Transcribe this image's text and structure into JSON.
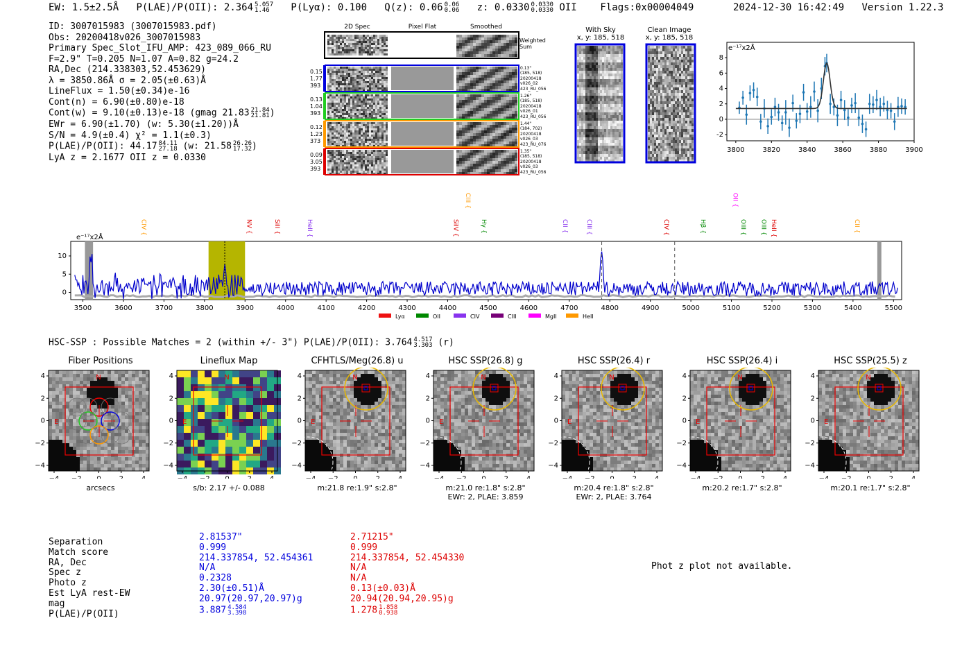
{
  "header": {
    "ew_label": "EW: 1.5±2.5Å",
    "plae_label": "P(LAE)/P(OII): 2.364",
    "plae_hi": "5.057",
    "plae_lo": "1.46",
    "plya": "P(Lyα): 0.100",
    "qz_label": "Q(z): 0.06",
    "qz_hi": "0.06",
    "qz_lo": "0.06",
    "z_label": "z: 0.0330",
    "z_hi": "0.0330",
    "z_lo": "0.0330",
    "z_line": "OII",
    "flags": "Flags:0x00004049",
    "timestamp": "2024-12-30 16:42:49",
    "version": "Version 1.22.3"
  },
  "info": {
    "id": "ID: 3007015983 (3007015983.pdf)",
    "obs": "Obs: 20200418v026_3007015983",
    "primary": "Primary Spec_Slot_IFU_AMP: 423_089_066_RU",
    "fiber": "F=2.9\"  T=0.205  N=1.07  A=0.82  g=24.2",
    "radec": "RA,Dec (214.338303,52.453629)",
    "lambda": "λ = 3850.86Å  σ = 2.05(±0.63)Å",
    "lineflux": "LineFlux = 1.50(±0.34)e-16",
    "contn": "Cont(n) = 6.90(±0.80)e-18",
    "contw": "Cont(w) = 9.10(±0.13)e-18 (gmag 21.83",
    "contw_hi": "21.84",
    "contw_lo": "21.81",
    "contw_end": ")",
    "ewr": "EWr = 6.90(±1.70) (w: 5.30(±1.20))Å",
    "sn": "S/N = 4.9(±0.4)  χ² = 1.1(±0.3)",
    "plae": "P(LAE)/P(OII): 44.17",
    "plae_hi": "84.11",
    "plae_lo": "27.18",
    "plae_w": "(w: 21.58",
    "plae_w_hi": "26.26",
    "plae_w_lo": "17.32",
    "plae_w_end": ")",
    "lyaz": "LyA z = 2.1677  OII z = 0.0330"
  },
  "cutouts": {
    "col_2d": "2D Spec",
    "col_flat": "Pixel Flat",
    "col_smooth": "Smoothed",
    "weighted_sum": "Weighted Sum",
    "rows": [
      {
        "w": "0.15",
        "a": "1.77",
        "n": "393",
        "info": [
          "0.13\"",
          "(185, 518)",
          "20200418",
          "v026_02",
          "423_RU_056"
        ],
        "color": "#0000dd"
      },
      {
        "w": "0.13",
        "a": "1.04",
        "n": "393",
        "info": [
          "1.26\"",
          "(185, 518)",
          "20200418",
          "v026_01",
          "423_RU_056"
        ],
        "color": "#22cc22"
      },
      {
        "w": "0.12",
        "a": "1.23",
        "n": "373",
        "info": [
          "1.44\"",
          "(184, 702)",
          "20200418",
          "v026_03",
          "423_RU_076"
        ],
        "color": "#ff9900"
      },
      {
        "w": "0.09",
        "a": "3.05",
        "n": "393",
        "info": [
          "1.35\"",
          "(185, 518)",
          "20200418",
          "v026_03",
          "423_RU_056"
        ],
        "color": "#dd0000"
      }
    ],
    "with_sky": "With Sky",
    "with_sky_xy": "x, y: 185, 518",
    "clean": "Clean Image",
    "clean_xy": "x, y: 185, 518"
  },
  "zoom_chart": {
    "unit": "e⁻¹⁷x2Å",
    "xlim": [
      3795,
      3900
    ],
    "ylim": [
      -2.8,
      10
    ],
    "xticks": [
      3800,
      3820,
      3840,
      3860,
      3880,
      3900
    ],
    "yticks": [
      -2,
      0,
      2,
      4,
      6,
      8
    ],
    "continuum": 1.4,
    "peak_center": 3851,
    "peak_amp": 5.9,
    "peak_sigma": 1.9,
    "points": [
      [
        3802,
        1.5,
        0.8
      ],
      [
        3804,
        2.8,
        0.9
      ],
      [
        3806,
        0.6,
        1.3
      ],
      [
        3808,
        3.4,
        1.0
      ],
      [
        3810,
        3.8,
        1.0
      ],
      [
        3812,
        2.9,
        1.2
      ],
      [
        3814,
        -0.3,
        1.0
      ],
      [
        3816,
        1.4,
        1.2
      ],
      [
        3818,
        -0.9,
        1.0
      ],
      [
        3820,
        0.3,
        1.0
      ],
      [
        3822,
        1.6,
        1.2
      ],
      [
        3824,
        0.9,
        1.1
      ],
      [
        3826,
        -0.5,
        1.0
      ],
      [
        3828,
        0.9,
        1.6
      ],
      [
        3830,
        -1.1,
        1.2
      ],
      [
        3832,
        2.1,
        1.1
      ],
      [
        3834,
        -0.2,
        1.0
      ],
      [
        3836,
        0.7,
        1.2
      ],
      [
        3838,
        3.5,
        1.1
      ],
      [
        3840,
        1.0,
        1.1
      ],
      [
        3842,
        1.6,
        1.4
      ],
      [
        3844,
        3.6,
        1.3
      ],
      [
        3846,
        1.1,
        1.5
      ],
      [
        3848,
        4.0,
        1.4
      ],
      [
        3850,
        6.9,
        1.2
      ],
      [
        3851,
        7.3,
        1.2
      ],
      [
        3853,
        2.0,
        1.3
      ],
      [
        3855,
        1.6,
        1.1
      ],
      [
        3857,
        0.5,
        1.4
      ],
      [
        3859,
        2.5,
        1.2
      ],
      [
        3861,
        1.2,
        1.3
      ],
      [
        3863,
        0.2,
        1.1
      ],
      [
        3865,
        1.8,
        1.0
      ],
      [
        3867,
        2.1,
        1.3
      ],
      [
        3869,
        0.2,
        1.1
      ],
      [
        3871,
        -0.6,
        1.2
      ],
      [
        3873,
        -1.3,
        1.0
      ],
      [
        3875,
        2.0,
        1.3
      ],
      [
        3877,
        1.9,
        1.1
      ],
      [
        3879,
        2.5,
        1.3
      ],
      [
        3881,
        1.6,
        1.2
      ],
      [
        3883,
        2.0,
        1.0
      ],
      [
        3885,
        1.2,
        1.2
      ],
      [
        3887,
        1.1,
        1.0
      ],
      [
        3889,
        -0.3,
        1.1
      ],
      [
        3891,
        1.6,
        1.3
      ],
      [
        3893,
        1.7,
        1.0
      ],
      [
        3895,
        1.6,
        1.0
      ]
    ]
  },
  "full_chart": {
    "unit": "e⁻¹⁷x2Å",
    "xlim": [
      3470,
      5520
    ],
    "ylim": [
      -2,
      14
    ],
    "xticks": [
      3500,
      3600,
      3700,
      3800,
      3900,
      4000,
      4100,
      4200,
      4300,
      4400,
      4500,
      4600,
      4700,
      4800,
      4900,
      5000,
      5100,
      5200,
      5300,
      5400,
      5500
    ],
    "yticks": [
      0,
      5,
      10
    ],
    "highlight": [
      3810,
      3900
    ],
    "emission_line": 3850,
    "masked": [
      [
        3505,
        3525
      ],
      [
        5460,
        5470
      ]
    ],
    "dashed": [
      4780,
      4960
    ],
    "spike_center": 4780,
    "spike_amp": 12,
    "lines": [
      {
        "label": "CIV",
        "wave": 3640,
        "color": "#ff9900",
        "row": "low"
      },
      {
        "label": "NV",
        "wave": 3900,
        "color": "#dd0000",
        "row": "low"
      },
      {
        "label": "SiII",
        "wave": 3970,
        "color": "#dd0000",
        "row": "low"
      },
      {
        "label": "HeII",
        "wave": 4050,
        "color": "#8833ee",
        "row": "low"
      },
      {
        "label": "SiIV",
        "wave": 4410,
        "color": "#dd0000",
        "row": "low"
      },
      {
        "label": "CIII",
        "wave": 4440,
        "color": "#ff9900",
        "row": "high"
      },
      {
        "label": "Hγ",
        "wave": 4480,
        "color": "#008800",
        "row": "low"
      },
      {
        "label": "CII",
        "wave": 4680,
        "color": "#8833ee",
        "row": "low"
      },
      {
        "label": "CIII",
        "wave": 4740,
        "color": "#8833ee",
        "row": "low"
      },
      {
        "label": "CIV",
        "wave": 4930,
        "color": "#dd0000",
        "row": "low"
      },
      {
        "label": "Hβ",
        "wave": 5020,
        "color": "#008800",
        "row": "low"
      },
      {
        "label": "OII",
        "wave": 5100,
        "color": "#ff00ff",
        "row": "high"
      },
      {
        "label": "OIII",
        "wave": 5120,
        "color": "#008800",
        "row": "low"
      },
      {
        "label": "OIII",
        "wave": 5170,
        "color": "#008800",
        "row": "low"
      },
      {
        "label": "HeII",
        "wave": 5195,
        "color": "#dd0000",
        "row": "low"
      },
      {
        "label": "CII",
        "wave": 5400,
        "color": "#ff9900",
        "row": "low"
      }
    ],
    "legend": [
      {
        "label": "Lyα",
        "color": "#ee1111"
      },
      {
        "label": "OII",
        "color": "#008800"
      },
      {
        "label": "CIV",
        "color": "#8833ee"
      },
      {
        "label": "CIII",
        "color": "#770077"
      },
      {
        "label": "MgII",
        "color": "#ff00ff"
      },
      {
        "label": "HeII",
        "color": "#ff9900"
      }
    ]
  },
  "hsc": {
    "title": "HSC-SSP : Possible Matches = 2 (within +/- 3\")  P(LAE)/P(OII): 3.764",
    "hi": "4.517",
    "lo": "3.303",
    "band": "(r)"
  },
  "panels": [
    {
      "title": "Fiber Positions",
      "cap1": "arcsecs",
      "cap2": ""
    },
    {
      "title": "Lineflux Map",
      "cap1": "s/b: 2.17 +/- 0.088",
      "cap2": ""
    },
    {
      "title": "CFHTLS/Meg(26.8) u",
      "cap1": "m:21.8  re:1.9\"  s:2.8\"",
      "cap2": ""
    },
    {
      "title": "HSC SSP(26.8) g",
      "cap1": "m:21.0  re:1.8\"  s:2.8\"",
      "cap2": "EWr: 2, PLAE: 3.859"
    },
    {
      "title": "HSC SSP(26.4) r",
      "cap1": "m:20.4  re:1.8\"  s:2.8\"",
      "cap2": "EWr: 2, PLAE: 3.764"
    },
    {
      "title": "HSC SSP(26.4) i",
      "cap1": "m:20.2  re:1.7\"  s:2.8\"",
      "cap2": ""
    },
    {
      "title": "HSC SSP(25.5) z",
      "cap1": "m:20.1  re:1.7\"  s:2.8\"",
      "cap2": ""
    }
  ],
  "panel_axis": {
    "ticks": [
      "−4",
      "−2",
      "0",
      "2",
      "4"
    ],
    "north": "N",
    "east": "E"
  },
  "match_table": {
    "labels": [
      "Separation",
      "Match score",
      "RA, Dec",
      "Spec z",
      "Photo z",
      "Est LyA rest-EW",
      "mag",
      "P(LAE)/P(OII)"
    ],
    "col1": [
      "2.81537\"",
      "0.999",
      "214.337854, 52.454361",
      "N/A",
      "0.2328",
      "2.30(±0.51)Å",
      "20.97(20.97,20.97)g",
      "3.887"
    ],
    "col1_hi": "4.584",
    "col1_lo": "3.398",
    "col2": [
      "2.71215\"",
      "0.999",
      "214.337854, 52.454330",
      "N/A",
      "N/A",
      "0.13(±0.03)Å",
      "20.94(20.94,20.95)g",
      "1.278"
    ],
    "col2_hi": "1.858",
    "col2_lo": "0.938"
  },
  "photz_msg": "Phot z plot not available.",
  "colors": {
    "blue": "#0000dd",
    "red": "#dd0000",
    "spectrum": "#0000cc",
    "fit": "#1f77b4",
    "highlight": "#b5b500"
  }
}
